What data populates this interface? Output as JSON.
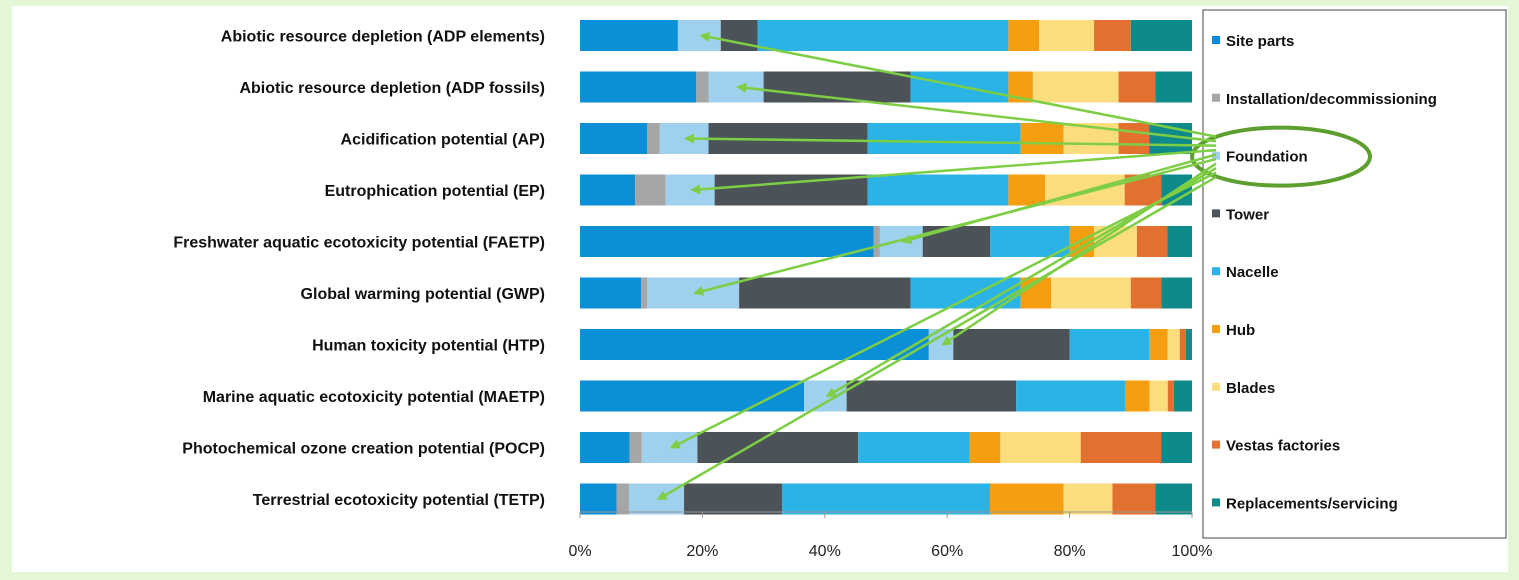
{
  "chart_data": {
    "type": "bar",
    "orientation": "horizontal",
    "stacked": true,
    "percent_stacked": true,
    "title": "",
    "xlabel": "",
    "ylabel": "",
    "xlim": [
      0,
      100
    ],
    "x_ticks": [
      "0%",
      "20%",
      "40%",
      "60%",
      "80%",
      "100%"
    ],
    "grid": false,
    "legend_position": "right",
    "categories": [
      "Abiotic resource depletion (ADP elements)",
      "Abiotic resource depletion (ADP fossils)",
      "Acidification potential (AP)",
      "Eutrophication potential (EP)",
      "Freshwater aquatic ecotoxicity potential (FAETP)",
      "Global warming potential (GWP)",
      "Human toxicity potential (HTP)",
      "Marine aquatic ecotoxicity potential (MAETP)",
      "Photochemical ozone creation potential (POCP)",
      "Terrestrial ecotoxicity potential (TETP)"
    ],
    "series": [
      {
        "name": "Site parts",
        "color": "#0b8fd6",
        "values": [
          16,
          19,
          11,
          9,
          48,
          10,
          57,
          37,
          8,
          6
        ]
      },
      {
        "name": "Installation/decommissioning",
        "color": "#a6a6a6",
        "values": [
          0,
          2,
          2,
          5,
          1,
          1,
          0,
          0,
          2,
          2
        ]
      },
      {
        "name": "Foundation",
        "color": "#9fd0ee",
        "values": [
          7,
          9,
          8,
          8,
          7,
          15,
          4,
          7,
          9,
          9
        ]
      },
      {
        "name": "Tower",
        "color": "#4b5358",
        "values": [
          6,
          24,
          26,
          25,
          11,
          28,
          19,
          28,
          26,
          16
        ]
      },
      {
        "name": "Nacelle",
        "color": "#2bb3e6",
        "values": [
          41,
          16,
          25,
          23,
          13,
          18,
          13,
          18,
          18,
          34
        ]
      },
      {
        "name": "Hub",
        "color": "#f59e10",
        "values": [
          5,
          4,
          7,
          6,
          4,
          5,
          3,
          4,
          5,
          12
        ]
      },
      {
        "name": "Blades",
        "color": "#fbdd7d",
        "values": [
          9,
          14,
          9,
          13,
          7,
          13,
          2,
          3,
          13,
          8
        ]
      },
      {
        "name": "Vestas factories",
        "color": "#e2712f",
        "values": [
          6,
          6,
          5,
          6,
          5,
          5,
          1,
          1,
          13,
          7
        ]
      },
      {
        "name": "Replacements/servicing",
        "color": "#0f8a8a",
        "values": [
          10,
          6,
          7,
          5,
          4,
          5,
          1,
          3,
          5,
          6
        ]
      }
    ],
    "annotations": {
      "highlighted_series": "Foundation",
      "ellipse_color": "#5d9f2f",
      "arrow_color": "#7dce44"
    }
  }
}
